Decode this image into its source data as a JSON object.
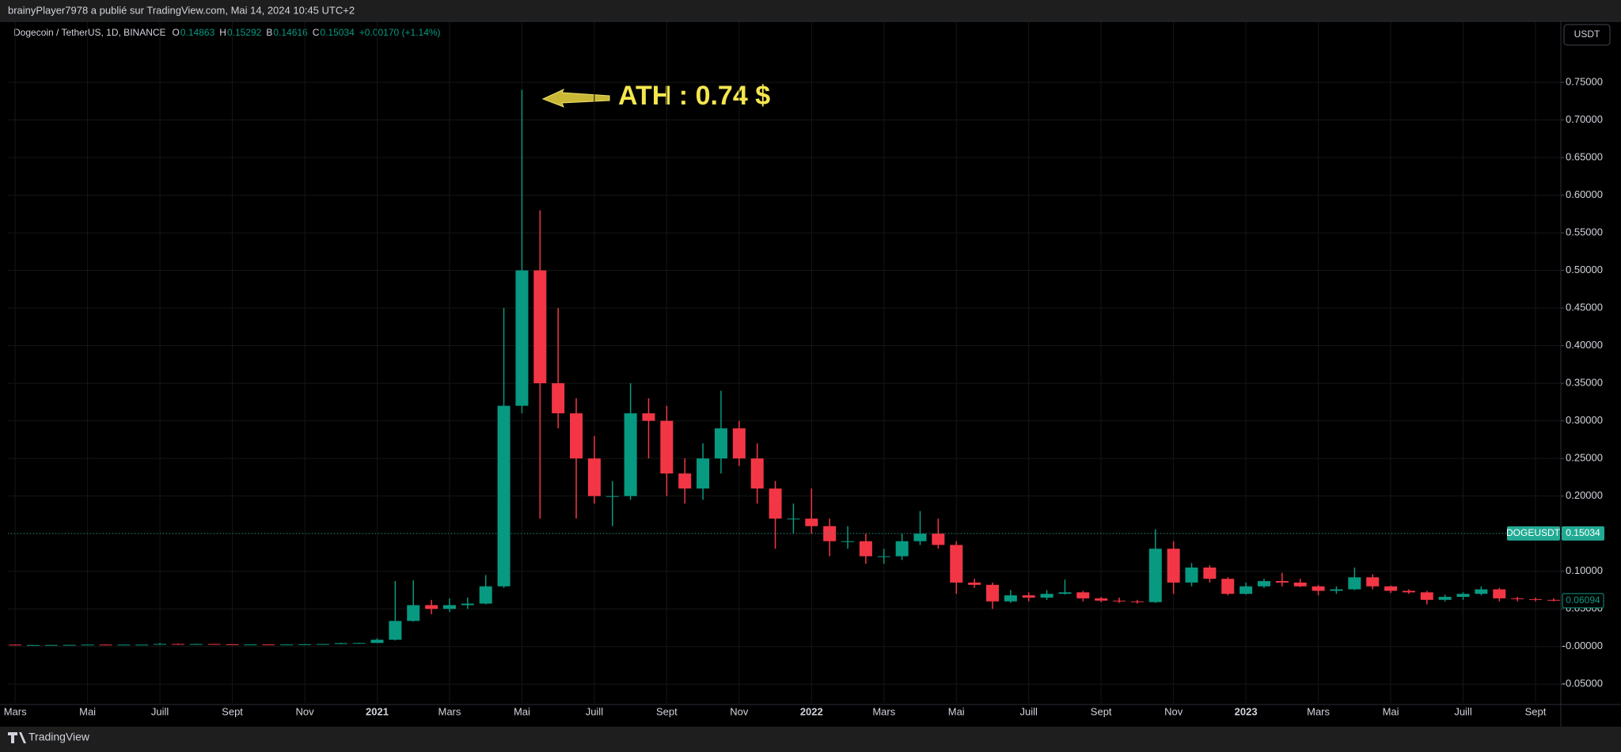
{
  "header": {
    "text": "brainyPlayer7978 a publié sur TradingView.com, Mai 14, 2024 10:45 UTC+2"
  },
  "footer": {
    "brand": "TradingView"
  },
  "currency_button": "USDT",
  "chart_data": {
    "type": "candlestick",
    "symbol": "Dogecoin / TetherUS, 1D, BINANCE",
    "legend_ohlc": [
      {
        "label": "O",
        "value": 0.14863
      },
      {
        "label": "H",
        "value": 0.15292
      },
      {
        "label": "B",
        "value": 0.14616
      },
      {
        "label": "C",
        "value": 0.15034
      }
    ],
    "change": "+0.00170 (+1.14%)",
    "annotation": "ATH : 0.74 $",
    "last_price": {
      "name": "DOGEUSDT",
      "value": 0.15034
    },
    "marker_price": 0.06094,
    "up_color": "#089981",
    "down_color": "#f23645",
    "grid": true,
    "x": [
      0,
      0.5,
      1,
      1.5,
      2,
      2.5,
      3,
      3.5,
      4,
      4.5,
      5,
      5.5,
      6,
      6.5,
      7,
      7.5,
      8,
      8.5,
      9,
      9.5,
      10,
      10.5,
      11,
      11.5,
      12,
      12.5,
      13,
      13.5,
      14,
      14.5,
      15,
      15.5,
      16,
      16.5,
      17,
      17.5,
      18,
      18.5,
      19,
      19.5,
      20,
      20.5,
      21,
      21.5,
      22,
      22.5,
      23,
      23.5,
      24,
      24.5,
      25,
      25.5,
      26,
      26.5,
      27,
      27.5,
      28,
      28.5,
      29,
      29.5,
      30,
      30.5,
      31,
      31.5,
      32,
      32.5,
      33,
      33.5,
      34,
      34.5,
      35,
      35.5,
      36,
      36.5,
      37,
      37.5,
      38,
      38.5,
      39,
      39.5,
      40,
      40.5,
      41,
      41.5,
      42,
      42.5
    ],
    "open": [
      0.0025,
      0.0019,
      0.002,
      0.0021,
      0.0022,
      0.0025,
      0.0024,
      0.0025,
      0.0025,
      0.0034,
      0.0031,
      0.0033,
      0.0029,
      0.0026,
      0.0027,
      0.0026,
      0.0027,
      0.003,
      0.0033,
      0.0045,
      0.0047,
      0.009,
      0.034,
      0.055,
      0.05,
      0.055,
      0.057,
      0.08,
      0.32,
      0.5,
      0.35,
      0.31,
      0.25,
      0.2,
      0.2,
      0.31,
      0.3,
      0.23,
      0.21,
      0.25,
      0.29,
      0.25,
      0.21,
      0.17,
      0.17,
      0.16,
      0.14,
      0.14,
      0.12,
      0.12,
      0.14,
      0.15,
      0.135,
      0.085,
      0.082,
      0.06,
      0.068,
      0.065,
      0.07,
      0.072,
      0.064,
      0.061,
      0.06,
      0.059,
      0.13,
      0.085,
      0.105,
      0.09,
      0.07,
      0.08,
      0.087,
      0.085,
      0.08,
      0.074,
      0.076,
      0.092,
      0.08,
      0.074,
      0.072,
      0.062,
      0.066,
      0.07,
      0.076,
      0.064,
      0.063,
      0.062
    ],
    "high": [
      0.0027,
      0.0021,
      0.0022,
      0.0023,
      0.0026,
      0.0027,
      0.0026,
      0.0026,
      0.0047,
      0.004,
      0.0036,
      0.0035,
      0.003,
      0.0028,
      0.0029,
      0.0028,
      0.0033,
      0.0035,
      0.005,
      0.005,
      0.011,
      0.087,
      0.088,
      0.062,
      0.064,
      0.065,
      0.095,
      0.45,
      0.74,
      0.58,
      0.45,
      0.33,
      0.28,
      0.22,
      0.35,
      0.33,
      0.32,
      0.25,
      0.27,
      0.34,
      0.3,
      0.27,
      0.22,
      0.19,
      0.21,
      0.17,
      0.16,
      0.15,
      0.13,
      0.15,
      0.18,
      0.17,
      0.14,
      0.09,
      0.085,
      0.075,
      0.072,
      0.075,
      0.089,
      0.074,
      0.066,
      0.065,
      0.062,
      0.156,
      0.14,
      0.111,
      0.108,
      0.092,
      0.085,
      0.09,
      0.098,
      0.09,
      0.082,
      0.08,
      0.105,
      0.096,
      0.081,
      0.076,
      0.074,
      0.069,
      0.072,
      0.08,
      0.078,
      0.066,
      0.065,
      0.064
    ],
    "low": [
      0.0016,
      0.0017,
      0.0019,
      0.002,
      0.0021,
      0.0023,
      0.0023,
      0.0024,
      0.0024,
      0.003,
      0.0029,
      0.0027,
      0.0025,
      0.0025,
      0.0025,
      0.0025,
      0.0026,
      0.0029,
      0.003,
      0.004,
      0.0046,
      0.008,
      0.033,
      0.043,
      0.046,
      0.05,
      0.056,
      0.078,
      0.31,
      0.17,
      0.29,
      0.17,
      0.19,
      0.16,
      0.195,
      0.25,
      0.2,
      0.19,
      0.195,
      0.23,
      0.24,
      0.19,
      0.13,
      0.15,
      0.15,
      0.12,
      0.13,
      0.11,
      0.11,
      0.115,
      0.135,
      0.13,
      0.07,
      0.078,
      0.05,
      0.058,
      0.06,
      0.062,
      0.069,
      0.06,
      0.059,
      0.058,
      0.057,
      0.058,
      0.07,
      0.08,
      0.085,
      0.068,
      0.069,
      0.078,
      0.08,
      0.079,
      0.068,
      0.07,
      0.075,
      0.076,
      0.071,
      0.07,
      0.056,
      0.06,
      0.062,
      0.068,
      0.06,
      0.06,
      0.06,
      0.06
    ],
    "close": [
      0.0019,
      0.002,
      0.0021,
      0.0022,
      0.0025,
      0.0024,
      0.0025,
      0.0025,
      0.0034,
      0.0031,
      0.0033,
      0.0029,
      0.0026,
      0.0027,
      0.0026,
      0.0027,
      0.003,
      0.0033,
      0.0045,
      0.0047,
      0.009,
      0.034,
      0.055,
      0.05,
      0.055,
      0.057,
      0.08,
      0.32,
      0.5,
      0.35,
      0.31,
      0.25,
      0.2,
      0.2,
      0.31,
      0.3,
      0.23,
      0.21,
      0.25,
      0.29,
      0.25,
      0.21,
      0.17,
      0.17,
      0.16,
      0.14,
      0.14,
      0.12,
      0.12,
      0.14,
      0.15,
      0.135,
      0.085,
      0.082,
      0.06,
      0.068,
      0.065,
      0.07,
      0.072,
      0.064,
      0.061,
      0.06,
      0.059,
      0.13,
      0.085,
      0.105,
      0.09,
      0.07,
      0.08,
      0.087,
      0.085,
      0.08,
      0.074,
      0.076,
      0.092,
      0.08,
      0.074,
      0.072,
      0.062,
      0.066,
      0.07,
      0.076,
      0.064,
      0.063,
      0.062,
      0.061
    ],
    "xlim": [
      -0.2,
      42.7
    ],
    "xticks": [
      {
        "value": 0,
        "label": "Mars"
      },
      {
        "value": 2,
        "label": "Mai"
      },
      {
        "value": 4,
        "label": "Juill"
      },
      {
        "value": 6,
        "label": "Sept"
      },
      {
        "value": 8,
        "label": "Nov"
      },
      {
        "value": 10,
        "label": "2021"
      },
      {
        "value": 12,
        "label": "Mars"
      },
      {
        "value": 14,
        "label": "Mai"
      },
      {
        "value": 16,
        "label": "Juill"
      },
      {
        "value": 18,
        "label": "Sept"
      },
      {
        "value": 20,
        "label": "Nov"
      },
      {
        "value": 22,
        "label": "2022"
      },
      {
        "value": 24,
        "label": "Mars"
      },
      {
        "value": 26,
        "label": "Mai"
      },
      {
        "value": 28,
        "label": "Juill"
      },
      {
        "value": 30,
        "label": "Sept"
      },
      {
        "value": 32,
        "label": "Nov"
      },
      {
        "value": 34,
        "label": "2023"
      },
      {
        "value": 36,
        "label": "Mars"
      },
      {
        "value": 38,
        "label": "Mai"
      },
      {
        "value": 40,
        "label": "Juill"
      },
      {
        "value": 42,
        "label": "Sept"
      }
    ],
    "ylim": [
      -0.075,
      0.83
    ],
    "yticks": [
      {
        "value": 0.75,
        "label": "0.75000"
      },
      {
        "value": 0.7,
        "label": "0.70000"
      },
      {
        "value": 0.65,
        "label": "0.65000"
      },
      {
        "value": 0.6,
        "label": "0.60000"
      },
      {
        "value": 0.55,
        "label": "0.55000"
      },
      {
        "value": 0.5,
        "label": "0.50000"
      },
      {
        "value": 0.45,
        "label": "0.45000"
      },
      {
        "value": 0.4,
        "label": "0.40000"
      },
      {
        "value": 0.35,
        "label": "0.35000"
      },
      {
        "value": 0.3,
        "label": "0.30000"
      },
      {
        "value": 0.25,
        "label": "0.25000"
      },
      {
        "value": 0.2,
        "label": "0.20000"
      },
      {
        "value": 0.15,
        "label": "0.15000"
      },
      {
        "value": 0.1,
        "label": "0.10000"
      },
      {
        "value": 0.05,
        "label": "0.05000"
      },
      {
        "value": 0,
        "label": "-0.00000"
      },
      {
        "value": -0.05,
        "label": "-0.05000"
      }
    ]
  }
}
